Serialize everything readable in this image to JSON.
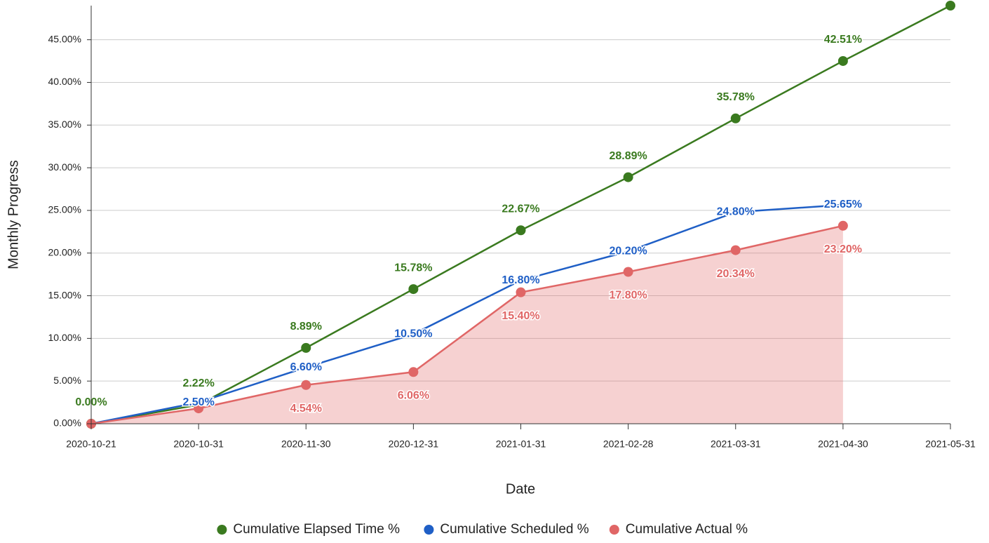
{
  "chart_data": {
    "type": "line",
    "x_label": "Date",
    "y_label": "Monthly Progress",
    "categories": [
      "2020-10-21",
      "2020-10-31",
      "2020-11-30",
      "2020-12-31",
      "2021-01-31",
      "2021-02-28",
      "2021-03-31",
      "2021-04-30",
      "2021-05-31"
    ],
    "series": [
      {
        "name": "Cumulative Elapsed Time %",
        "color": "#3a7a1f",
        "marker": true,
        "fill": false,
        "label_position": "above",
        "values": [
          0,
          2.22,
          8.89,
          15.78,
          22.67,
          28.89,
          35.78,
          42.51,
          49
        ],
        "value_labels": [
          "0.00%",
          "2.22%",
          "8.89%",
          "15.78%",
          "22.67%",
          "28.89%",
          "35.78%",
          "42.51%",
          null
        ]
      },
      {
        "name": "Cumulative Scheduled %",
        "color": "#1f5fc6",
        "marker": false,
        "fill": false,
        "label_position": "center",
        "values": [
          0,
          2.5,
          6.6,
          10.5,
          16.8,
          20.2,
          24.8,
          25.65,
          null
        ],
        "value_labels": [
          null,
          "2.50%",
          "6.60%",
          "10.50%",
          "16.80%",
          "20.20%",
          "24.80%",
          "25.65%",
          null
        ]
      },
      {
        "name": "Cumulative Actual %",
        "color": "#e06666",
        "marker": true,
        "fill": true,
        "label_position": "below",
        "values": [
          0,
          1.8,
          4.54,
          6.06,
          15.4,
          17.8,
          20.34,
          23.2,
          null
        ],
        "value_labels": [
          null,
          null,
          "4.54%",
          "6.06%",
          "15.40%",
          "17.80%",
          "20.34%",
          "23.20%",
          null
        ]
      }
    ],
    "ylim": [
      0,
      49
    ],
    "yticks": [
      {
        "value": 0,
        "label": "0.00%"
      },
      {
        "value": 5,
        "label": "5.00%"
      },
      {
        "value": 10,
        "label": "10.00%"
      },
      {
        "value": 15,
        "label": "15.00%"
      },
      {
        "value": 20,
        "label": "20.00%"
      },
      {
        "value": 25,
        "label": "25.00%"
      },
      {
        "value": 30,
        "label": "30.00%"
      },
      {
        "value": 35,
        "label": "35.00%"
      },
      {
        "value": 40,
        "label": "40.00%"
      },
      {
        "value": 45,
        "label": "45.00%"
      }
    ],
    "grid": true,
    "legend": "bottom"
  }
}
